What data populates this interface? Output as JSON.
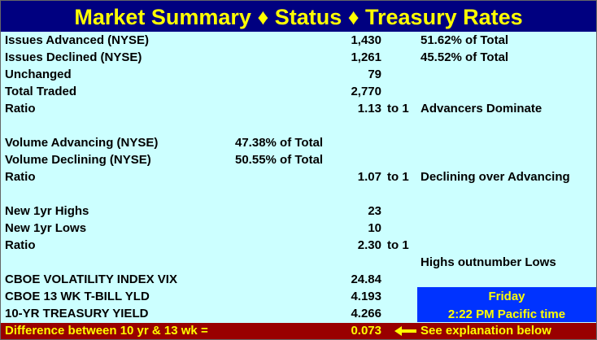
{
  "header": {
    "title": "Market Summary ♦ Status ♦ Treasury Rates"
  },
  "sections": [
    [
      {
        "label": "Issues Advanced (NYSE)",
        "value": "1,430",
        "note": "51.62% of Total"
      },
      {
        "label": "Issues Declined (NYSE)",
        "value": "1,261",
        "note": "45.52% of Total"
      },
      {
        "label": "Unchanged",
        "value": "79"
      },
      {
        "label": "Total Traded",
        "value": "2,770"
      },
      {
        "label": "Ratio",
        "value": "1.13",
        "suffix": "to 1",
        "note": "Advancers Dominate"
      }
    ],
    [
      {
        "label": "Volume Advancing (NYSE)",
        "share": "47.38% of Total"
      },
      {
        "label": "Volume Declining (NYSE)",
        "share": "50.55% of Total"
      },
      {
        "label": "Ratio",
        "value": "1.07",
        "suffix": "to 1",
        "note": "Declining over Advancing"
      }
    ],
    [
      {
        "label": "New 1yr Highs",
        "value": "23"
      },
      {
        "label": "New 1yr Lows",
        "value": "10"
      },
      {
        "label": "Ratio",
        "value": "2.30",
        "suffix": "to 1"
      },
      {
        "note": "Highs outnumber Lows"
      },
      {
        "label": "CBOE VOLATILITY INDEX VIX",
        "value": "24.84"
      },
      {
        "label": "CBOE 13 WK T-BILL YLD",
        "value": "4.193"
      },
      {
        "label": "10-YR TREASURY YIELD",
        "value": "4.266"
      }
    ]
  ],
  "timestamp": {
    "day": "Friday",
    "time": "2:22 PM Pacific time"
  },
  "footer": {
    "label": "Difference between 10 yr & 13 wk =",
    "value": "0.073",
    "note": "See explanation below"
  }
}
